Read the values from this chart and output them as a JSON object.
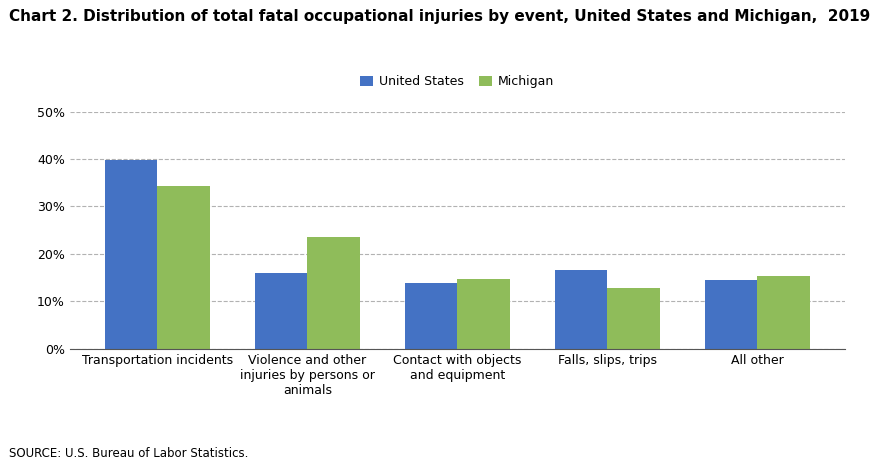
{
  "title": "Chart 2. Distribution of total fatal occupational injuries by event, United States and Michigan,  2019",
  "categories": [
    "Transportation incidents",
    "Violence and other\ninjuries by persons or\nanimals",
    "Contact with objects\nand equipment",
    "Falls, slips, trips",
    "All other"
  ],
  "us_values": [
    39.9,
    16.0,
    13.8,
    16.7,
    14.4
  ],
  "mi_values": [
    34.4,
    23.5,
    14.8,
    12.8,
    15.4
  ],
  "us_color": "#4472C4",
  "mi_color": "#8FBC5A",
  "ylim": [
    0,
    50
  ],
  "yticks": [
    0,
    10,
    20,
    30,
    40,
    50
  ],
  "ytick_labels": [
    "0%",
    "10%",
    "20%",
    "30%",
    "40%",
    "50%"
  ],
  "legend_labels": [
    "United States",
    "Michigan"
  ],
  "source_text": "SOURCE: U.S. Bureau of Labor Statistics.",
  "bar_width": 0.35,
  "background_color": "#ffffff",
  "title_fontsize": 11,
  "axis_fontsize": 9,
  "legend_fontsize": 9,
  "source_fontsize": 8.5
}
